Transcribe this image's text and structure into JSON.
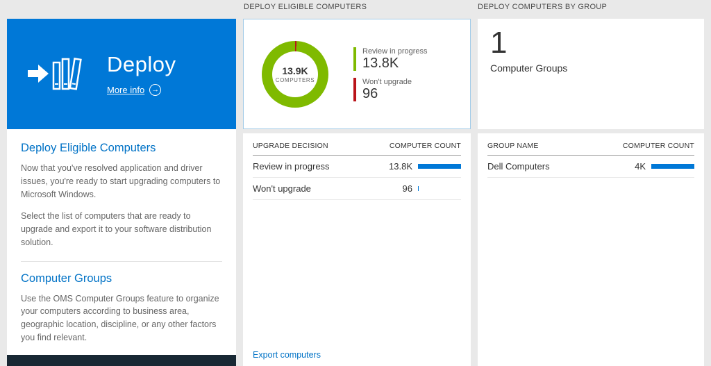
{
  "colors": {
    "tile_blue": "#0078d7",
    "heading_blue": "#0072c6",
    "link_blue": "#0072c6",
    "bar_blue": "#0078d7",
    "series_green": "#7fba00",
    "series_red": "#ba141a",
    "footer_dark": "#182834",
    "donut_card_border": "#a2cbe8"
  },
  "icons": {
    "more_info_arrow": "→"
  },
  "left_panel": {
    "tile_title": "Deploy",
    "more_info_label": "More info",
    "sections": [
      {
        "heading": "Deploy Eligible Computers",
        "paragraphs": [
          "Now that you've resolved application and driver issues, you're ready to start upgrading computers to Microsoft Windows.",
          "Select the list of computers that are ready to upgrade and export it to your software distribution solution."
        ]
      },
      {
        "heading": "Computer Groups",
        "paragraphs": [
          "Use the OMS Computer Groups feature to organize your computers according to business area, geographic location, discipline, or any other factors you find relevant."
        ]
      }
    ]
  },
  "middle_panel": {
    "header": "DEPLOY ELIGIBLE COMPUTERS",
    "donut_center_value": "13.9K",
    "donut_center_label": "COMPUTERS",
    "legend": [
      {
        "label": "Review in progress",
        "value": "13.8K"
      },
      {
        "label": "Won't upgrade",
        "value": "96"
      }
    ],
    "table": {
      "col1": "UPGRADE DECISION",
      "col2": "COMPUTER COUNT",
      "rows": [
        {
          "label": "Review in progress",
          "value": "13.8K",
          "bar_pct": 100
        },
        {
          "label": "Won't upgrade",
          "value": "96",
          "bar_pct": 1.5
        }
      ]
    },
    "export_label": "Export computers"
  },
  "right_panel": {
    "header": "DEPLOY COMPUTERS BY GROUP",
    "group_count": "1",
    "group_count_label": "Computer Groups",
    "table": {
      "col1": "GROUP NAME",
      "col2": "COMPUTER COUNT",
      "rows": [
        {
          "label": "Dell Computers",
          "value": "4K",
          "bar_pct": 100
        }
      ]
    }
  },
  "chart_data": {
    "type": "pie",
    "title": "Deploy Eligible Computers",
    "labels": [
      "Review in progress",
      "Won't upgrade"
    ],
    "values": [
      13800,
      96
    ],
    "colors": [
      "#7fba00",
      "#ba141a"
    ],
    "center_value": "13.9K",
    "center_label": "COMPUTERS",
    "legend_position": "right",
    "donut": true
  }
}
